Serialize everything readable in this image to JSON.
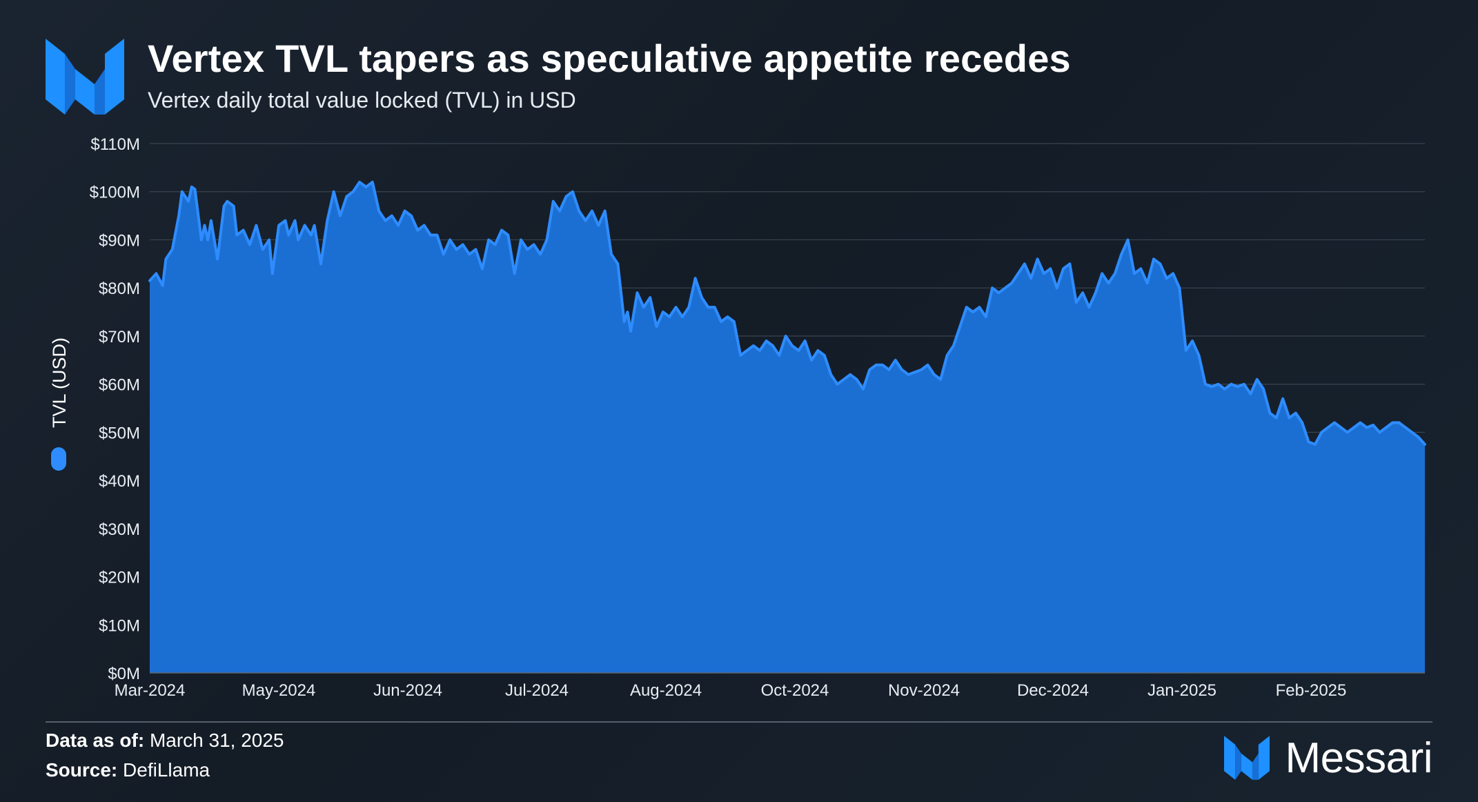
{
  "header": {
    "title": "Vertex TVL tapers as speculative appetite recedes",
    "subtitle": "Vertex daily total value locked (TVL) in USD"
  },
  "footer": {
    "date_label": "Data as of:",
    "date_value": "March 31, 2025",
    "source_label": "Source:",
    "source_value": "DefiLlama"
  },
  "brand": {
    "name": "Messari",
    "logo_icon": "messari-logo-icon"
  },
  "colors": {
    "area_fill": "#1c6fd2",
    "line": "#2e8cff",
    "logo": "#1e90ff",
    "grid": "#3a4450"
  },
  "chart_data": {
    "type": "area",
    "title": "Vertex TVL tapers as speculative appetite recedes",
    "subtitle": "Vertex daily total value locked (TVL) in USD",
    "xlabel": "",
    "ylabel": "TVL (USD)",
    "legend": {
      "position": "left-vertical",
      "entries": [
        "TVL (USD)"
      ]
    },
    "grid": true,
    "ylim": [
      0,
      110000000
    ],
    "y_ticks": [
      0,
      10000000,
      20000000,
      30000000,
      40000000,
      50000000,
      60000000,
      70000000,
      80000000,
      90000000,
      100000000,
      110000000
    ],
    "y_tick_labels": [
      "$0M",
      "$10M",
      "$20M",
      "$30M",
      "$40M",
      "$50M",
      "$60M",
      "$70M",
      "$80M",
      "$90M",
      "$100M",
      "$110M"
    ],
    "x_tick_labels": [
      "Mar-2024",
      "May-2024",
      "Jun-2024",
      "Jul-2024",
      "Aug-2024",
      "Oct-2024",
      "Nov-2024",
      "Dec-2024",
      "Jan-2025",
      "Feb-2025"
    ],
    "x_range": [
      "2024-03-01",
      "2025-03-31"
    ],
    "series": [
      {
        "name": "TVL (USD)",
        "points": [
          [
            "2024-03-01",
            81.5
          ],
          [
            "2024-03-03",
            83
          ],
          [
            "2024-03-05",
            80.5
          ],
          [
            "2024-03-06",
            86
          ],
          [
            "2024-03-08",
            88
          ],
          [
            "2024-03-10",
            95
          ],
          [
            "2024-03-11",
            100
          ],
          [
            "2024-03-13",
            98
          ],
          [
            "2024-03-14",
            101
          ],
          [
            "2024-03-15",
            100.5
          ],
          [
            "2024-03-17",
            90
          ],
          [
            "2024-03-18",
            93
          ],
          [
            "2024-03-19",
            90
          ],
          [
            "2024-03-20",
            94
          ],
          [
            "2024-03-22",
            86
          ],
          [
            "2024-03-24",
            97
          ],
          [
            "2024-03-25",
            98
          ],
          [
            "2024-03-27",
            97
          ],
          [
            "2024-03-28",
            91
          ],
          [
            "2024-03-30",
            92
          ],
          [
            "2024-04-01",
            89
          ],
          [
            "2024-04-03",
            93
          ],
          [
            "2024-04-05",
            88
          ],
          [
            "2024-04-07",
            90
          ],
          [
            "2024-04-08",
            83
          ],
          [
            "2024-04-10",
            93
          ],
          [
            "2024-04-12",
            94
          ],
          [
            "2024-04-13",
            91
          ],
          [
            "2024-04-15",
            94
          ],
          [
            "2024-04-16",
            90
          ],
          [
            "2024-04-18",
            93
          ],
          [
            "2024-04-20",
            91
          ],
          [
            "2024-04-21",
            93
          ],
          [
            "2024-04-23",
            85
          ],
          [
            "2024-04-25",
            94
          ],
          [
            "2024-04-27",
            100
          ],
          [
            "2024-04-29",
            95
          ],
          [
            "2024-05-01",
            99
          ],
          [
            "2024-05-03",
            100
          ],
          [
            "2024-05-05",
            102
          ],
          [
            "2024-05-07",
            101
          ],
          [
            "2024-05-09",
            102
          ],
          [
            "2024-05-11",
            96
          ],
          [
            "2024-05-13",
            94
          ],
          [
            "2024-05-15",
            95
          ],
          [
            "2024-05-17",
            93
          ],
          [
            "2024-05-19",
            96
          ],
          [
            "2024-05-21",
            95
          ],
          [
            "2024-05-23",
            92
          ],
          [
            "2024-05-25",
            93
          ],
          [
            "2024-05-27",
            91
          ],
          [
            "2024-05-29",
            91
          ],
          [
            "2024-05-31",
            87
          ],
          [
            "2024-06-02",
            90
          ],
          [
            "2024-06-04",
            88
          ],
          [
            "2024-06-06",
            89
          ],
          [
            "2024-06-08",
            87
          ],
          [
            "2024-06-10",
            88
          ],
          [
            "2024-06-12",
            84
          ],
          [
            "2024-06-14",
            90
          ],
          [
            "2024-06-16",
            89
          ],
          [
            "2024-06-18",
            92
          ],
          [
            "2024-06-20",
            91
          ],
          [
            "2024-06-22",
            83
          ],
          [
            "2024-06-24",
            90
          ],
          [
            "2024-06-26",
            88
          ],
          [
            "2024-06-28",
            89
          ],
          [
            "2024-06-30",
            87
          ],
          [
            "2024-07-02",
            90
          ],
          [
            "2024-07-04",
            98
          ],
          [
            "2024-07-06",
            96
          ],
          [
            "2024-07-08",
            99
          ],
          [
            "2024-07-10",
            100
          ],
          [
            "2024-07-12",
            96
          ],
          [
            "2024-07-14",
            94
          ],
          [
            "2024-07-16",
            96
          ],
          [
            "2024-07-18",
            93
          ],
          [
            "2024-07-20",
            96
          ],
          [
            "2024-07-22",
            87
          ],
          [
            "2024-07-24",
            85
          ],
          [
            "2024-07-26",
            73
          ],
          [
            "2024-07-27",
            75
          ],
          [
            "2024-07-28",
            71
          ],
          [
            "2024-07-30",
            79
          ],
          [
            "2024-08-01",
            76
          ],
          [
            "2024-08-03",
            78
          ],
          [
            "2024-08-05",
            72
          ],
          [
            "2024-08-07",
            75
          ],
          [
            "2024-08-09",
            74
          ],
          [
            "2024-08-11",
            76
          ],
          [
            "2024-08-13",
            74
          ],
          [
            "2024-08-15",
            76
          ],
          [
            "2024-08-17",
            82
          ],
          [
            "2024-08-19",
            78
          ],
          [
            "2024-08-21",
            76
          ],
          [
            "2024-08-23",
            76
          ],
          [
            "2024-08-25",
            73
          ],
          [
            "2024-08-27",
            74
          ],
          [
            "2024-08-29",
            73
          ],
          [
            "2024-08-31",
            66
          ],
          [
            "2024-09-02",
            67
          ],
          [
            "2024-09-04",
            68
          ],
          [
            "2024-09-06",
            67
          ],
          [
            "2024-09-08",
            69
          ],
          [
            "2024-09-10",
            68
          ],
          [
            "2024-09-12",
            66
          ],
          [
            "2024-09-14",
            70
          ],
          [
            "2024-09-16",
            68
          ],
          [
            "2024-09-18",
            67
          ],
          [
            "2024-09-20",
            69
          ],
          [
            "2024-09-22",
            65
          ],
          [
            "2024-09-24",
            67
          ],
          [
            "2024-09-26",
            66
          ],
          [
            "2024-09-28",
            62
          ],
          [
            "2024-09-30",
            60
          ],
          [
            "2024-10-02",
            61
          ],
          [
            "2024-10-04",
            62
          ],
          [
            "2024-10-06",
            61
          ],
          [
            "2024-10-08",
            59
          ],
          [
            "2024-10-10",
            63
          ],
          [
            "2024-10-12",
            64
          ],
          [
            "2024-10-14",
            64
          ],
          [
            "2024-10-16",
            63
          ],
          [
            "2024-10-18",
            65
          ],
          [
            "2024-10-20",
            63
          ],
          [
            "2024-10-22",
            62
          ],
          [
            "2024-10-24",
            62.5
          ],
          [
            "2024-10-26",
            63
          ],
          [
            "2024-10-28",
            64
          ],
          [
            "2024-10-30",
            62
          ],
          [
            "2024-11-01",
            61
          ],
          [
            "2024-11-03",
            66
          ],
          [
            "2024-11-05",
            68
          ],
          [
            "2024-11-07",
            72
          ],
          [
            "2024-11-09",
            76
          ],
          [
            "2024-11-11",
            75
          ],
          [
            "2024-11-13",
            76
          ],
          [
            "2024-11-15",
            74
          ],
          [
            "2024-11-17",
            80
          ],
          [
            "2024-11-19",
            79
          ],
          [
            "2024-11-21",
            80
          ],
          [
            "2024-11-23",
            81
          ],
          [
            "2024-11-25",
            83
          ],
          [
            "2024-11-27",
            85
          ],
          [
            "2024-11-29",
            82
          ],
          [
            "2024-12-01",
            86
          ],
          [
            "2024-12-03",
            83
          ],
          [
            "2024-12-05",
            84
          ],
          [
            "2024-12-07",
            80
          ],
          [
            "2024-12-09",
            84
          ],
          [
            "2024-12-11",
            85
          ],
          [
            "2024-12-13",
            77
          ],
          [
            "2024-12-15",
            79
          ],
          [
            "2024-12-17",
            76
          ],
          [
            "2024-12-19",
            79
          ],
          [
            "2024-12-21",
            83
          ],
          [
            "2024-12-23",
            81
          ],
          [
            "2024-12-25",
            83
          ],
          [
            "2024-12-27",
            87
          ],
          [
            "2024-12-29",
            90
          ],
          [
            "2024-12-31",
            83
          ],
          [
            "2025-01-02",
            84
          ],
          [
            "2025-01-04",
            81
          ],
          [
            "2025-01-06",
            86
          ],
          [
            "2025-01-08",
            85
          ],
          [
            "2025-01-10",
            82
          ],
          [
            "2025-01-12",
            83
          ],
          [
            "2025-01-14",
            80
          ],
          [
            "2025-01-16",
            67
          ],
          [
            "2025-01-18",
            69
          ],
          [
            "2025-01-20",
            66
          ],
          [
            "2025-01-22",
            60
          ],
          [
            "2025-01-24",
            59.5
          ],
          [
            "2025-01-26",
            60
          ],
          [
            "2025-01-28",
            59
          ],
          [
            "2025-01-30",
            60
          ],
          [
            "2025-02-01",
            59.5
          ],
          [
            "2025-02-03",
            60
          ],
          [
            "2025-02-05",
            58
          ],
          [
            "2025-02-07",
            61
          ],
          [
            "2025-02-09",
            59
          ],
          [
            "2025-02-11",
            54
          ],
          [
            "2025-02-13",
            53
          ],
          [
            "2025-02-15",
            57
          ],
          [
            "2025-02-17",
            53
          ],
          [
            "2025-02-19",
            54
          ],
          [
            "2025-02-21",
            52
          ],
          [
            "2025-02-23",
            48
          ],
          [
            "2025-02-25",
            47.5
          ],
          [
            "2025-02-27",
            50
          ],
          [
            "2025-03-01",
            51
          ],
          [
            "2025-03-03",
            52
          ],
          [
            "2025-03-05",
            51
          ],
          [
            "2025-03-07",
            50
          ],
          [
            "2025-03-09",
            51
          ],
          [
            "2025-03-11",
            52
          ],
          [
            "2025-03-13",
            51
          ],
          [
            "2025-03-15",
            51.5
          ],
          [
            "2025-03-17",
            50
          ],
          [
            "2025-03-19",
            51
          ],
          [
            "2025-03-21",
            52
          ],
          [
            "2025-03-23",
            52
          ],
          [
            "2025-03-25",
            51
          ],
          [
            "2025-03-27",
            50
          ],
          [
            "2025-03-29",
            49
          ],
          [
            "2025-03-31",
            47.5
          ]
        ],
        "units": "USD millions"
      }
    ]
  }
}
